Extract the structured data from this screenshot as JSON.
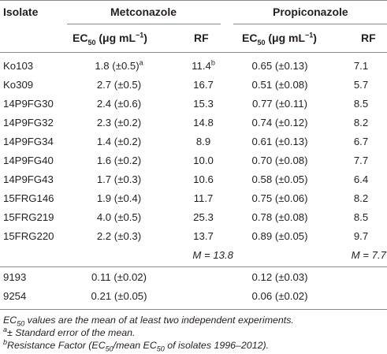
{
  "header": {
    "isolate": "Isolate",
    "metconazole": "Metconazole",
    "propiconazole": "Propiconazole",
    "ec50_prefix": "EC",
    "ec50_sub": "50",
    "ec50_unit": " (μg mL",
    "ec50_sup": "−1",
    "ec50_close": ")",
    "rf": "RF"
  },
  "rows": [
    {
      "isolate": "Ko103",
      "met_ec50": "1.8 (±0.5)",
      "met_ec50_sup": "a",
      "met_rf": "11.4",
      "met_rf_sup": "b",
      "pro_ec50": "0.65 (±0.13)",
      "pro_rf": "7.1"
    },
    {
      "isolate": "Ko309",
      "met_ec50": "2.7 (±0.5)",
      "met_ec50_sup": "",
      "met_rf": "16.7",
      "met_rf_sup": "",
      "pro_ec50": "0.51 (±0.08)",
      "pro_rf": "5.7"
    },
    {
      "isolate": "14P9FG30",
      "met_ec50": "2.4 (±0.6)",
      "met_ec50_sup": "",
      "met_rf": "15.3",
      "met_rf_sup": "",
      "pro_ec50": "0.77 (±0.11)",
      "pro_rf": "8.5"
    },
    {
      "isolate": "14P9FG32",
      "met_ec50": "2.3 (±0.2)",
      "met_ec50_sup": "",
      "met_rf": "14.8",
      "met_rf_sup": "",
      "pro_ec50": "0.74 (±0.12)",
      "pro_rf": "8.2"
    },
    {
      "isolate": "14P9FG34",
      "met_ec50": "1.4 (±0.2)",
      "met_ec50_sup": "",
      "met_rf": "8.9",
      "met_rf_sup": "",
      "pro_ec50": "0.61 (±0.13)",
      "pro_rf": "6.7"
    },
    {
      "isolate": "14P9FG40",
      "met_ec50": "1.6 (±0.2)",
      "met_ec50_sup": "",
      "met_rf": "10.0",
      "met_rf_sup": "",
      "pro_ec50": "0.70 (±0.08)",
      "pro_rf": "7.7"
    },
    {
      "isolate": "14P9FG43",
      "met_ec50": "1.7 (±0.3)",
      "met_ec50_sup": "",
      "met_rf": "10.6",
      "met_rf_sup": "",
      "pro_ec50": "0.58 (±0.05)",
      "pro_rf": "6.4"
    },
    {
      "isolate": "15FRG146",
      "met_ec50": "1.9 (±0.4)",
      "met_ec50_sup": "",
      "met_rf": "11.7",
      "met_rf_sup": "",
      "pro_ec50": "0.75 (±0.06)",
      "pro_rf": "8.2"
    },
    {
      "isolate": "15FRG219",
      "met_ec50": "4.0 (±0.5)",
      "met_ec50_sup": "",
      "met_rf": "25.3",
      "met_rf_sup": "",
      "pro_ec50": "0.78 (±0.08)",
      "pro_rf": "8.5"
    },
    {
      "isolate": "15FRG220",
      "met_ec50": "2.2 (±0.3)",
      "met_ec50_sup": "",
      "met_rf": "13.7",
      "met_rf_sup": "",
      "pro_ec50": "0.89 (±0.05)",
      "pro_rf": "9.7"
    }
  ],
  "means": {
    "met": "M = 13.8",
    "pro": "M = 7.7"
  },
  "rows2": [
    {
      "isolate": "9193",
      "met_ec50": "0.11 (±0.02)",
      "pro_ec50": "0.12 (±0.03)"
    },
    {
      "isolate": "9254",
      "met_ec50": "0.21 (±0.05)",
      "pro_ec50": "0.06 (±0.02)"
    }
  ],
  "footnotes": {
    "f1_prefix": "EC",
    "f1_sub": "50",
    "f1_text": " values are the mean of at least two independent experiments.",
    "f2_sup": "a",
    "f2_text": "± Standard error of the mean.",
    "f3_sup": "b",
    "f3_text_a": "Resistance Factor (EC",
    "f3_sub1": "50",
    "f3_text_b": "/mean EC",
    "f3_sub2": "50",
    "f3_text_c": " of isolates 1996–2012)."
  }
}
